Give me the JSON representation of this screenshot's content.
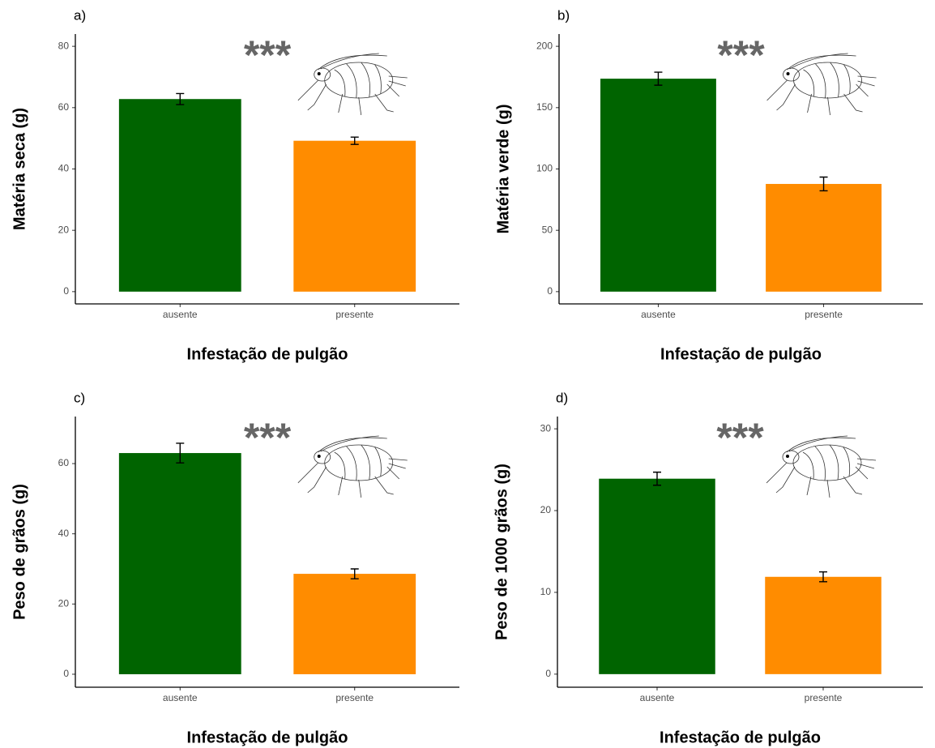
{
  "chart_data": [
    {
      "type": "bar",
      "label": "a)",
      "annotation": "***",
      "xlabel": "Infestação de pulgão",
      "ylabel": "Matéria seca (g)",
      "categories": [
        "ausente",
        "presente"
      ],
      "values": [
        62.8,
        49.2
      ],
      "errors": [
        1.8,
        1.2
      ],
      "colors": [
        "#006400",
        "#ff8c00"
      ],
      "ylim": [
        -4,
        84
      ],
      "yticks": [
        0,
        20,
        40,
        60,
        80
      ]
    },
    {
      "type": "bar",
      "label": "b)",
      "annotation": "***",
      "xlabel": "Infestação de pulgão",
      "ylabel": "Matéria verde (g)",
      "categories": [
        "ausente",
        "presente"
      ],
      "values": [
        173.6,
        87.8
      ],
      "errors": [
        5.3,
        5.6
      ],
      "colors": [
        "#006400",
        "#ff8c00"
      ],
      "ylim": [
        -10,
        210
      ],
      "yticks": [
        0,
        50,
        100,
        150,
        200
      ]
    },
    {
      "type": "bar",
      "label": "c)",
      "annotation": "***",
      "xlabel": "Infestação de pulgão",
      "ylabel": "Peso de grãos (g)",
      "categories": [
        "ausente",
        "presente"
      ],
      "values": [
        63.0,
        28.6
      ],
      "errors": [
        2.8,
        1.4
      ],
      "colors": [
        "#006400",
        "#ff8c00"
      ],
      "ylim": [
        -3.7,
        73.4
      ],
      "yticks": [
        0,
        20,
        40,
        60
      ]
    },
    {
      "type": "bar",
      "label": "d)",
      "annotation": "***",
      "xlabel": "Infestação de pulgão",
      "ylabel": "Peso de 1000 grãos (g)",
      "categories": [
        "ausente",
        "presente"
      ],
      "values": [
        23.9,
        11.9
      ],
      "errors": [
        0.8,
        0.6
      ],
      "colors": [
        "#006400",
        "#ff8c00"
      ],
      "ylim": [
        -1.6,
        31.5
      ],
      "yticks": [
        0,
        10,
        20,
        30
      ]
    }
  ]
}
